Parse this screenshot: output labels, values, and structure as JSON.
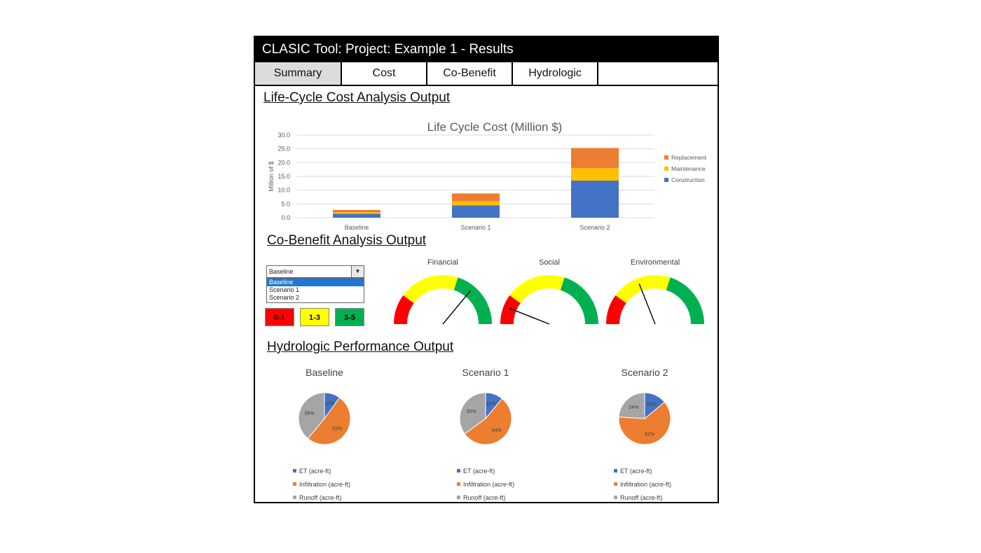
{
  "window": {
    "title": "CLASIC Tool:  Project: Example 1 - Results"
  },
  "tabs": [
    {
      "label": "Summary",
      "active": true
    },
    {
      "label": "Cost",
      "active": false
    },
    {
      "label": "Co-Benefit",
      "active": false
    },
    {
      "label": "Hydrologic",
      "active": false
    }
  ],
  "sections": {
    "lcca": "Life-Cycle Cost Analysis Output",
    "cobenefit": "Co-Benefit Analysis Output",
    "hydrologic": "Hydrologic Performance Output"
  },
  "colors": {
    "construction": "#4472c4",
    "maintenance": "#ffc000",
    "replacement": "#ed7d31",
    "et": "#4472c4",
    "infiltration": "#ed7d31",
    "runoff": "#a5a5a5",
    "gauge_red": "#ff0000",
    "gauge_yellow": "#ffff00",
    "gauge_green": "#00b050"
  },
  "chart_data": [
    {
      "type": "bar",
      "stacked": true,
      "title": "Life Cycle Cost (Million $)",
      "ylabel": "Million of $",
      "xlabel": "",
      "ylim": [
        0,
        30
      ],
      "yticks": [
        "0.0",
        "5.0",
        "10.0",
        "15.0",
        "20.0",
        "25.0",
        "30.0"
      ],
      "categories": [
        "Baseline",
        "Scenario 1",
        "Scenario 2"
      ],
      "series": [
        {
          "name": "Construction",
          "values": [
            1.4,
            4.5,
            13.5
          ]
        },
        {
          "name": "Maintenance",
          "values": [
            0.6,
            1.5,
            4.5
          ]
        },
        {
          "name": "Replacement",
          "values": [
            0.8,
            2.8,
            7.3
          ]
        }
      ],
      "legend_position": "right",
      "grid": true
    },
    {
      "type": "pie",
      "title": "Baseline",
      "labels": [
        "ET (acre-ft)",
        "Infiltration (acre-ft)",
        "Runoff (acre-ft)"
      ],
      "values": [
        10,
        51,
        39
      ],
      "value_labels": [
        "10%",
        "51%",
        "39%"
      ]
    },
    {
      "type": "pie",
      "title": "Scenario 1",
      "labels": [
        "ET (acre-ft)",
        "Infiltration (acre-ft)",
        "Runoff (acre-ft)"
      ],
      "values": [
        11,
        54,
        35
      ],
      "value_labels": [
        "11%",
        "54%",
        "35%"
      ]
    },
    {
      "type": "pie",
      "title": "Scenario 2",
      "labels": [
        "ET (acre-ft)",
        "Infiltration (acre-ft)",
        "Runoff (acre-ft)"
      ],
      "values": [
        14,
        62,
        24
      ],
      "value_labels": [
        "14%",
        "62%",
        "24%"
      ]
    }
  ],
  "cobenefit": {
    "dropdown": {
      "selected": "Baseline",
      "options": [
        "Baseline",
        "Scenario 1",
        "Scenario 2"
      ],
      "icon": "chevron-down-icon"
    },
    "ranges": [
      "0-1",
      "1-3",
      "3-5"
    ],
    "gauges": [
      {
        "label": "Financial",
        "value": 3.6
      },
      {
        "label": "Social",
        "value": 0.6
      },
      {
        "label": "Environmental",
        "value": 1.9
      }
    ],
    "gauge_max": 5
  }
}
